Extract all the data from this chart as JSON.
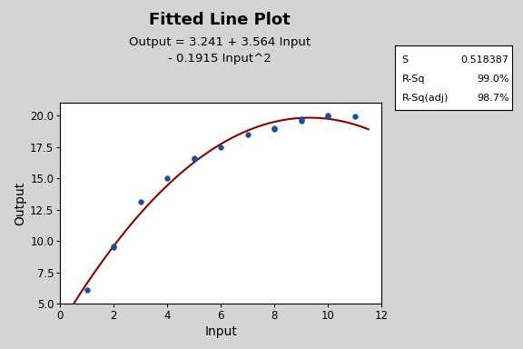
{
  "title": "Fitted Line Plot",
  "subtitle": "Output = 3.241 + 3.564 Input\n- 0.1915 Input^2",
  "xlabel": "Input",
  "ylabel": "Output",
  "scatter_x": [
    1,
    2,
    2,
    3,
    4,
    5,
    5,
    6,
    7,
    8,
    8,
    9,
    9,
    10,
    10,
    11
  ],
  "scatter_y": [
    6.1,
    9.5,
    9.6,
    13.1,
    15.0,
    16.5,
    16.6,
    17.5,
    18.5,
    18.9,
    19.0,
    19.6,
    19.7,
    19.9,
    20.0,
    19.9
  ],
  "coef": [
    3.241,
    3.564,
    -0.1915
  ],
  "xlim": [
    0,
    12
  ],
  "ylim": [
    5.0,
    21.0
  ],
  "xticks": [
    0,
    2,
    4,
    6,
    8,
    10,
    12
  ],
  "yticks": [
    5.0,
    7.5,
    10.0,
    12.5,
    15.0,
    17.5,
    20.0
  ],
  "scatter_color": "#1F4E9C",
  "line_color": "#8B0000",
  "bg_color": "#D4D4D4",
  "plot_bg_color": "#FFFFFF",
  "stats": {
    "S": "0.518387",
    "R-Sq": "99.0%",
    "R-Sq(adj)": "98.7%"
  },
  "title_fontsize": 13,
  "subtitle_fontsize": 9.5,
  "label_fontsize": 10,
  "tick_fontsize": 8.5
}
